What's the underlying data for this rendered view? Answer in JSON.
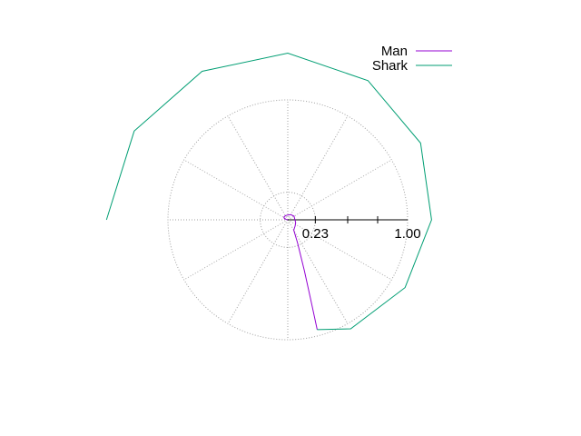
{
  "chart_data": {
    "type": "line",
    "coordinate_system": "polar",
    "grid": true,
    "grid_style": "dotted",
    "angular_grid_step_deg": 30,
    "radial_grid_rings": [
      0.23,
      1.0
    ],
    "rlim": [
      0,
      1.0
    ],
    "tick_labels": [
      "0.23",
      "1.00"
    ],
    "legend": {
      "placement": "top-right",
      "entries": [
        "Man",
        "Shark"
      ]
    },
    "series": [
      {
        "name": "Man",
        "color": "#9400d3",
        "points": [
          {
            "theta_deg": 180,
            "r": 0.0
          },
          {
            "theta_deg": 170,
            "r": 0.01
          },
          {
            "theta_deg": 160,
            "r": 0.03
          },
          {
            "theta_deg": 145,
            "r": 0.04
          },
          {
            "theta_deg": 120,
            "r": 0.04
          },
          {
            "theta_deg": 90,
            "r": 0.04
          },
          {
            "theta_deg": 60,
            "r": 0.05
          },
          {
            "theta_deg": 30,
            "r": 0.06
          },
          {
            "theta_deg": 0,
            "r": 0.06
          },
          {
            "theta_deg": -20,
            "r": 0.07
          },
          {
            "theta_deg": -40,
            "r": 0.08
          },
          {
            "theta_deg": -60,
            "r": 0.1
          },
          {
            "theta_deg": -67,
            "r": 0.21
          },
          {
            "theta_deg": -72,
            "r": 0.45
          },
          {
            "theta_deg": -74,
            "r": 0.7
          },
          {
            "theta_deg": -75,
            "r": 0.948
          }
        ]
      },
      {
        "name": "Shark",
        "color": "#009e73",
        "points": [
          {
            "theta_deg": 180,
            "r": 1.513
          },
          {
            "theta_deg": 150,
            "r": 1.48
          },
          {
            "theta_deg": 120,
            "r": 1.43
          },
          {
            "theta_deg": 90,
            "r": 1.39
          },
          {
            "theta_deg": 60,
            "r": 1.34
          },
          {
            "theta_deg": 30,
            "r": 1.28
          },
          {
            "theta_deg": 0,
            "r": 1.2
          },
          {
            "theta_deg": -30,
            "r": 1.13
          },
          {
            "theta_deg": -60,
            "r": 1.05
          },
          {
            "theta_deg": -75,
            "r": 0.948
          }
        ]
      }
    ]
  }
}
